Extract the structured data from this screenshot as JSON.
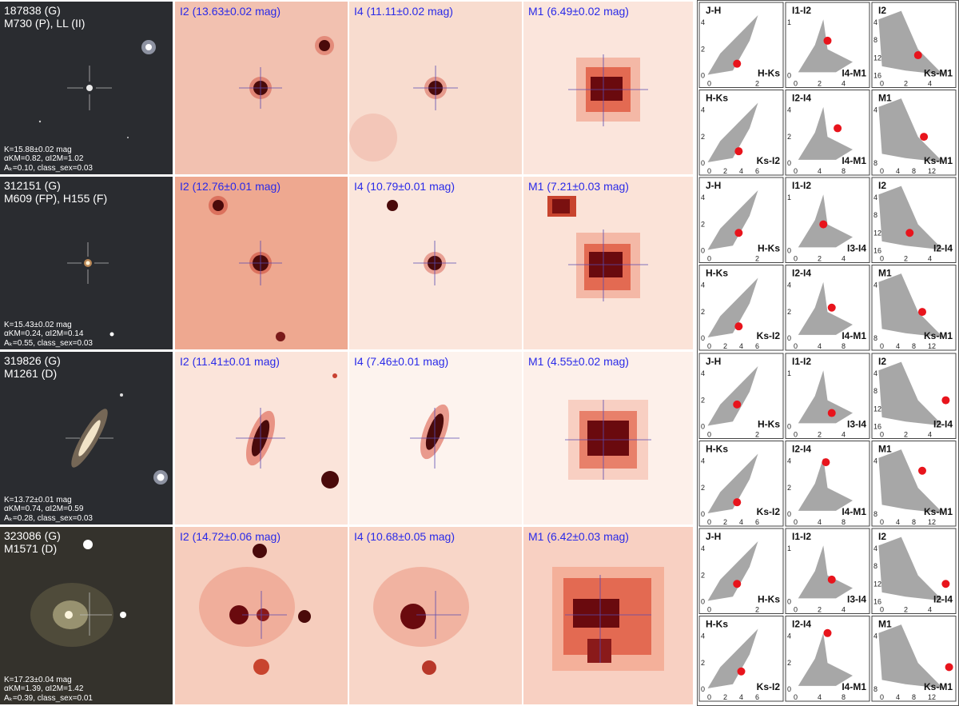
{
  "rows": [
    {
      "id_line": "187838 (G)",
      "match_line": "M730 (P), LL (II)",
      "k_line": "K=15.88±0.02 mag",
      "alpha_line": "αKM=0.82, αI2M=1.02",
      "ak_line": "Aₖ=0.10, class_sex=0.03",
      "i2_label": "I2 (13.63±0.02 mag)",
      "i4_label": "I4 (11.11±0.02 mag)",
      "m1_label": "M1 (6.49±0.02 mag)"
    },
    {
      "id_line": "312151 (G)",
      "match_line": "M609 (FP), H155 (F)",
      "k_line": "K=15.43±0.02 mag",
      "alpha_line": "αKM=0.24, αI2M=0.14",
      "ak_line": "Aₖ=0.55, class_sex=0.03",
      "i2_label": "I2 (12.76±0.01 mag)",
      "i4_label": "I4 (10.79±0.01 mag)",
      "m1_label": "M1 (7.21±0.03 mag)"
    },
    {
      "id_line": "319826 (G)",
      "match_line": "M1261 (D)",
      "k_line": "K=13.72±0.01 mag",
      "alpha_line": "αKM=0.74, αI2M=0.59",
      "ak_line": "Aₖ=0.28, class_sex=0.03",
      "i2_label": "I2 (11.41±0.01 mag)",
      "i4_label": "I4 (7.46±0.01 mag)",
      "m1_label": "M1 (4.55±0.02 mag)"
    },
    {
      "id_line": "323086 (G)",
      "match_line": "M1571 (D)",
      "k_line": "K=17.23±0.04 mag",
      "alpha_line": "αKM=1.39, αI2M=1.42",
      "ak_line": "Aₖ=0.39, class_sex=0.01",
      "i2_label": "I2 (14.72±0.06 mag)",
      "i4_label": "I4 (10.68±0.05 mag)",
      "m1_label": "M1 (6.42±0.03 mag)"
    }
  ],
  "cmd": {
    "top": [
      {
        "ylabel": "J-H",
        "xlabel": "H-Ks",
        "yticks": [
          "4",
          "2",
          "0"
        ],
        "xticks": [
          "0",
          "2"
        ]
      },
      {
        "ylabel": "I1-I2",
        "xlabel": "I3-I4",
        "yticks": [
          "1",
          "0"
        ],
        "xticks": [
          "0",
          "2",
          "4"
        ]
      },
      {
        "ylabel": "I2",
        "xlabel": "I2-I4",
        "yticks": [
          "4",
          "8",
          "12",
          "16"
        ],
        "xticks": [
          "0",
          "2",
          "4"
        ]
      }
    ],
    "bottom": [
      {
        "ylabel": "H-Ks",
        "xlabel": "Ks-I2",
        "yticks": [
          "4",
          "2",
          "0"
        ],
        "xticks": [
          "0",
          "2",
          "4",
          "6"
        ]
      },
      {
        "ylabel": "I2-I4",
        "xlabel": "I4-M1",
        "yticks": [
          "4",
          "2",
          "0"
        ],
        "xticks": [
          "0",
          "4",
          "8"
        ]
      },
      {
        "ylabel": "M1",
        "xlabel": "Ks-M1",
        "yticks": [
          "4",
          "8"
        ],
        "xticks": [
          "0",
          "4",
          "8",
          "12"
        ]
      }
    ],
    "bottom_first_row_xlabels": [
      "H-Ks",
      "I4-M1",
      "Ks-M1"
    ],
    "marker_color": "#e8141c",
    "cloud_color": "#8a8a8a"
  }
}
